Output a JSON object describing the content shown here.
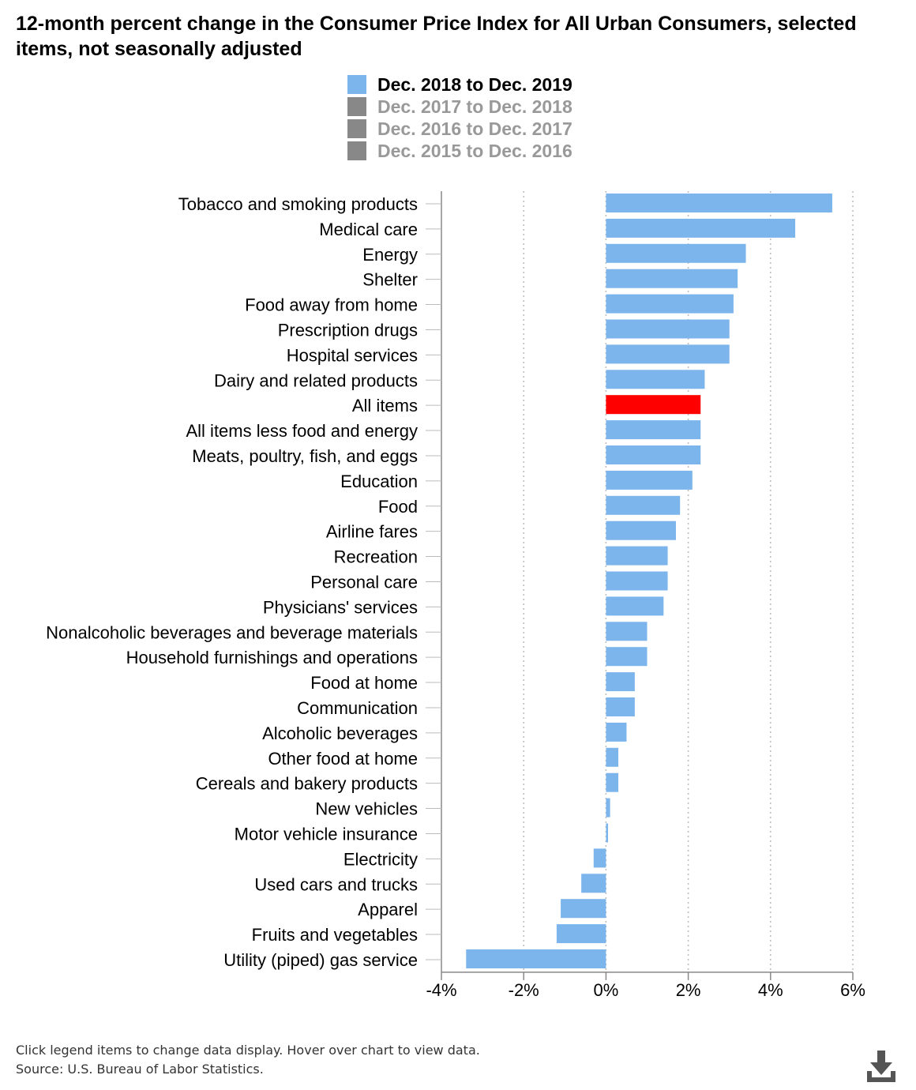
{
  "title": "12-month percent change in the Consumer Price Index for All Urban Consumers, selected items, not seasonally adjusted",
  "legend": [
    {
      "label": "Dec. 2018 to Dec. 2019",
      "color": "#7cb5ec",
      "active": true
    },
    {
      "label": "Dec. 2017 to Dec. 2018",
      "color": "#888888",
      "active": false
    },
    {
      "label": "Dec. 2016 to Dec. 2017",
      "color": "#888888",
      "active": false
    },
    {
      "label": "Dec. 2015 to Dec. 2016",
      "color": "#888888",
      "active": false
    }
  ],
  "footer": {
    "note": "Click legend items to change data display. Hover over chart to view data.",
    "source": "Source: U.S. Bureau of Labor Statistics."
  },
  "download_icon": "download-icon",
  "chart_data": {
    "type": "bar",
    "orientation": "horizontal",
    "categories": [
      "Tobacco and smoking products",
      "Medical care",
      "Energy",
      "Shelter",
      "Food away from home",
      "Prescription drugs",
      "Hospital services",
      "Dairy and related products",
      "All items",
      "All items less food and energy",
      "Meats, poultry, fish, and eggs",
      "Education",
      "Food",
      "Airline fares",
      "Recreation",
      "Personal care",
      "Physicians' services",
      "Nonalcoholic beverages and beverage materials",
      "Household furnishings and operations",
      "Food at home",
      "Communication",
      "Alcoholic beverages",
      "Other food at home",
      "Cereals and bakery products",
      "New vehicles",
      "Motor vehicle insurance",
      "Electricity",
      "Used cars and trucks",
      "Apparel",
      "Fruits and vegetables",
      "Utility (piped) gas service"
    ],
    "series": [
      {
        "name": "Dec. 2018 to Dec. 2019",
        "values": [
          5.5,
          4.6,
          3.4,
          3.2,
          3.1,
          3.0,
          3.0,
          2.4,
          2.3,
          2.3,
          2.3,
          2.1,
          1.8,
          1.7,
          1.5,
          1.5,
          1.4,
          1.0,
          1.0,
          0.7,
          0.7,
          0.5,
          0.3,
          0.3,
          0.1,
          0.05,
          -0.3,
          -0.6,
          -1.1,
          -1.2,
          -3.4
        ]
      }
    ],
    "highlight": {
      "category": "All items",
      "color": "#ff0000"
    },
    "bar_color": "#7cb5ec",
    "xlim": [
      -4,
      6
    ],
    "x_ticks": [
      "-4%",
      "-2%",
      "0%",
      "2%",
      "4%",
      "6%"
    ],
    "x_tick_values": [
      -4,
      -2,
      0,
      2,
      4,
      6
    ],
    "grid": "vertical dotted",
    "legend_position": "top"
  }
}
